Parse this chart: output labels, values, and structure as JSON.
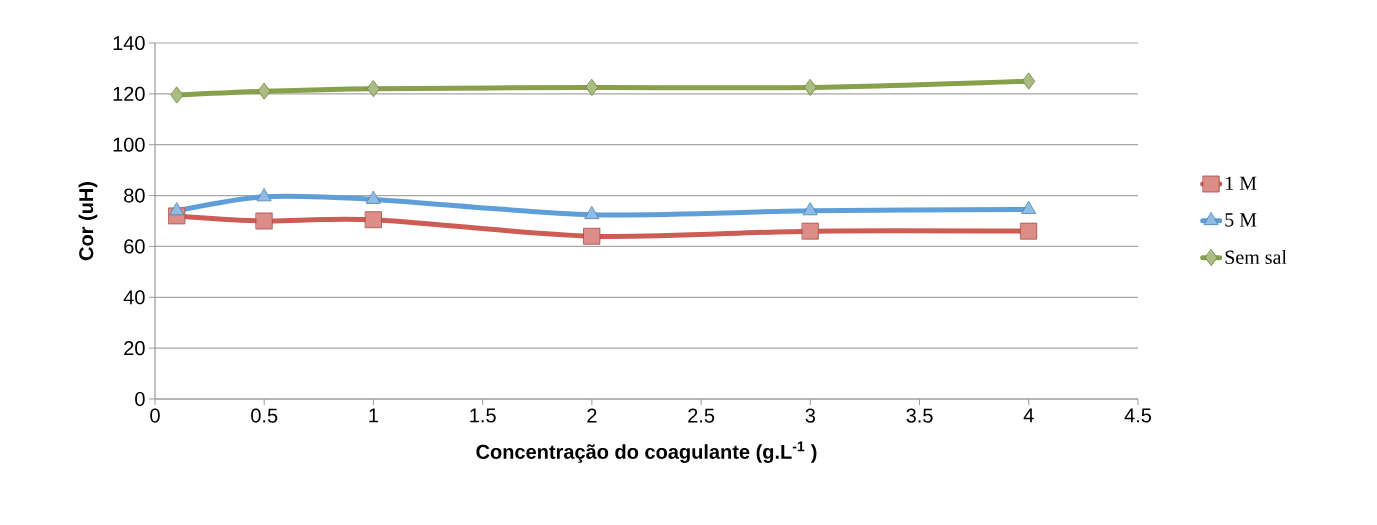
{
  "chart_data": {
    "type": "line",
    "xlabel": "Concentração do coagulante (g.L$^{-1}$ )",
    "ylabel": "Cor (uH)",
    "x": [
      0.1,
      0.5,
      1,
      2,
      3,
      4
    ],
    "series": [
      {
        "name": "1 M",
        "color": "#cd5c55",
        "marker": "square",
        "values": [
          72,
          70,
          70.5,
          64,
          66,
          66
        ]
      },
      {
        "name": "5 M",
        "color": "#5f9fd9",
        "marker": "triangle",
        "values": [
          74,
          79.5,
          78.5,
          72.5,
          74,
          74.5
        ]
      },
      {
        "name": "Sem sal",
        "color": "#86a04b",
        "marker": "diamond",
        "values": [
          119.5,
          121,
          122,
          122.5,
          122.5,
          125
        ]
      }
    ],
    "xlim": [
      0,
      4.5
    ],
    "xticks": [
      0,
      0.5,
      1,
      1.5,
      2,
      2.5,
      3,
      3.5,
      4,
      4.5
    ],
    "ylim": [
      0,
      140
    ],
    "yticks": [
      0,
      20,
      40,
      60,
      80,
      100,
      120,
      140
    ],
    "grid": "y",
    "legend": "right",
    "line_style": "solid"
  }
}
